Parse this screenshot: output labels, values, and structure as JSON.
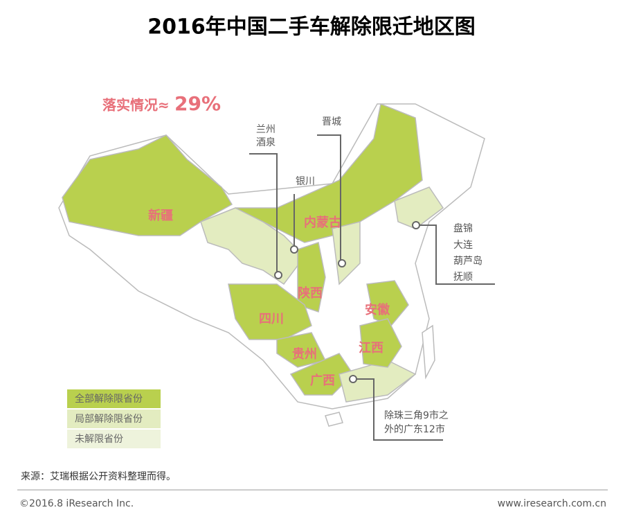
{
  "header": {
    "title": "2016年中国二手车解除限迁地区图"
  },
  "rate": {
    "label": "落实情况≈",
    "value": "29%"
  },
  "provinces": [
    "新疆",
    "内蒙古",
    "陕西",
    "四川",
    "贵州",
    "广西",
    "安徽",
    "江西"
  ],
  "callouts": [
    [
      "兰州",
      "酒泉"
    ],
    [
      "银川"
    ],
    [
      "晋城"
    ],
    [
      "盘锦",
      "大连",
      "葫芦岛",
      "抚顺"
    ],
    [
      "除珠三角9市之",
      "外的广东12市"
    ]
  ],
  "legend": [
    "全部解除限省份",
    "局部解除限省份",
    "未解限省份"
  ],
  "footer": {
    "source": "来源：艾瑞根据公开资料整理而得。",
    "copyright": "©2016.8 iResearch Inc.",
    "website": "www.iresearch.com.cn"
  }
}
